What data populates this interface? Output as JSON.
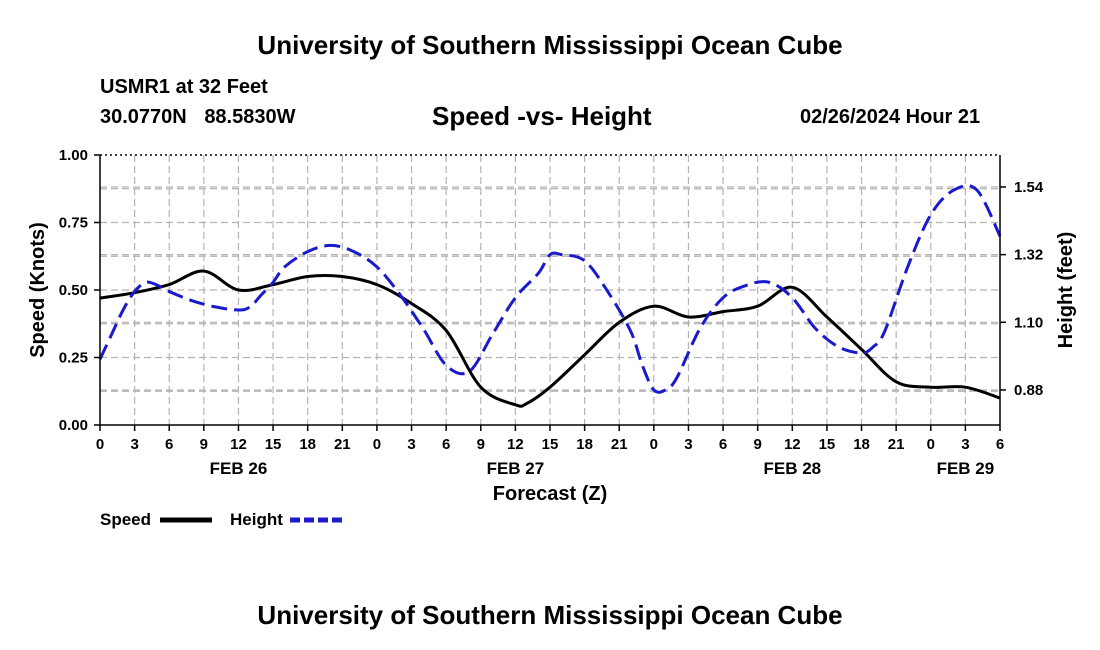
{
  "header": {
    "title": "University of Southern Mississippi Ocean Cube",
    "station": "USMR1 at 32 Feet",
    "latitude": "30.0770N",
    "longitude": "88.5830W",
    "chart_title": "Speed -vs- Height",
    "date_hour": "02/26/2024 Hour 21"
  },
  "footer": {
    "title": "University of Southern Mississippi Ocean Cube"
  },
  "colors": {
    "speed": "#000000",
    "height": "#1a1acc",
    "grid": "#b4b4b4"
  },
  "chart_data": {
    "type": "line",
    "title": "Speed -vs- Height",
    "xlabel": "Forecast (Z)",
    "ylabel": "Speed (Knots)",
    "y2label": "Height (feet)",
    "x_hours": [
      0,
      3,
      6,
      9,
      12,
      15,
      18,
      21,
      24,
      27,
      30,
      33,
      36,
      39,
      42,
      45,
      48,
      51,
      54,
      57,
      60,
      63,
      66,
      69,
      72,
      75,
      78
    ],
    "x_tick_labels": [
      "0",
      "3",
      "6",
      "9",
      "12",
      "15",
      "18",
      "21",
      "0",
      "3",
      "6",
      "9",
      "12",
      "15",
      "18",
      "21",
      "0",
      "3",
      "6",
      "9",
      "12",
      "15",
      "18",
      "21",
      "0",
      "3",
      "6"
    ],
    "date_labels": [
      {
        "label": "FEB 26",
        "hour": 12
      },
      {
        "label": "FEB 27",
        "hour": 36
      },
      {
        "label": "FEB 28",
        "hour": 60
      },
      {
        "label": "FEB 29",
        "hour": 75
      }
    ],
    "y_ticks": [
      "0.00",
      "0.25",
      "0.50",
      "0.75",
      "1.00"
    ],
    "ylim": [
      0,
      1
    ],
    "y2_ticks": [
      "0.88",
      "1.10",
      "1.32",
      "1.54"
    ],
    "y2lim": [
      0.766,
      1.644
    ],
    "grid": true,
    "legend_position": "bottom-left",
    "series": [
      {
        "name": "Speed",
        "axis": "left",
        "style": "solid",
        "x": [
          0,
          3,
          6,
          9,
          12,
          15,
          18,
          21,
          24,
          27,
          30,
          33,
          36,
          37,
          39,
          42,
          45,
          48,
          51,
          54,
          57,
          60,
          63,
          66,
          69,
          72,
          75,
          78
        ],
        "values": [
          0.47,
          0.49,
          0.52,
          0.57,
          0.5,
          0.52,
          0.55,
          0.55,
          0.52,
          0.45,
          0.35,
          0.14,
          0.075,
          0.08,
          0.14,
          0.26,
          0.38,
          0.44,
          0.4,
          0.42,
          0.44,
          0.51,
          0.4,
          0.28,
          0.16,
          0.14,
          0.14,
          0.1
        ]
      },
      {
        "name": "Height",
        "axis": "right",
        "style": "dashed",
        "x": [
          0,
          1,
          2,
          3,
          4,
          5,
          6,
          8,
          10,
          12,
          13,
          14,
          15,
          16,
          18,
          20,
          22,
          24,
          26,
          28,
          30,
          32,
          34,
          36,
          38,
          39,
          40,
          42,
          44,
          46,
          47,
          48,
          49,
          50,
          52,
          54,
          56,
          58,
          60,
          62,
          64,
          66,
          67,
          68,
          70,
          72,
          74,
          76,
          78
        ],
        "values": [
          0.98,
          1.06,
          1.14,
          1.2,
          1.23,
          1.22,
          1.2,
          1.17,
          1.15,
          1.14,
          1.15,
          1.19,
          1.23,
          1.28,
          1.33,
          1.35,
          1.33,
          1.28,
          1.19,
          1.08,
          0.96,
          0.94,
          1.06,
          1.18,
          1.26,
          1.32,
          1.32,
          1.3,
          1.2,
          1.07,
          0.96,
          0.88,
          0.88,
          0.92,
          1.08,
          1.18,
          1.22,
          1.23,
          1.18,
          1.08,
          1.02,
          1.0,
          1.02,
          1.07,
          1.28,
          1.45,
          1.53,
          1.53,
          1.38
        ]
      }
    ]
  },
  "legend": {
    "speed_label": "Speed",
    "height_label": "Height"
  }
}
